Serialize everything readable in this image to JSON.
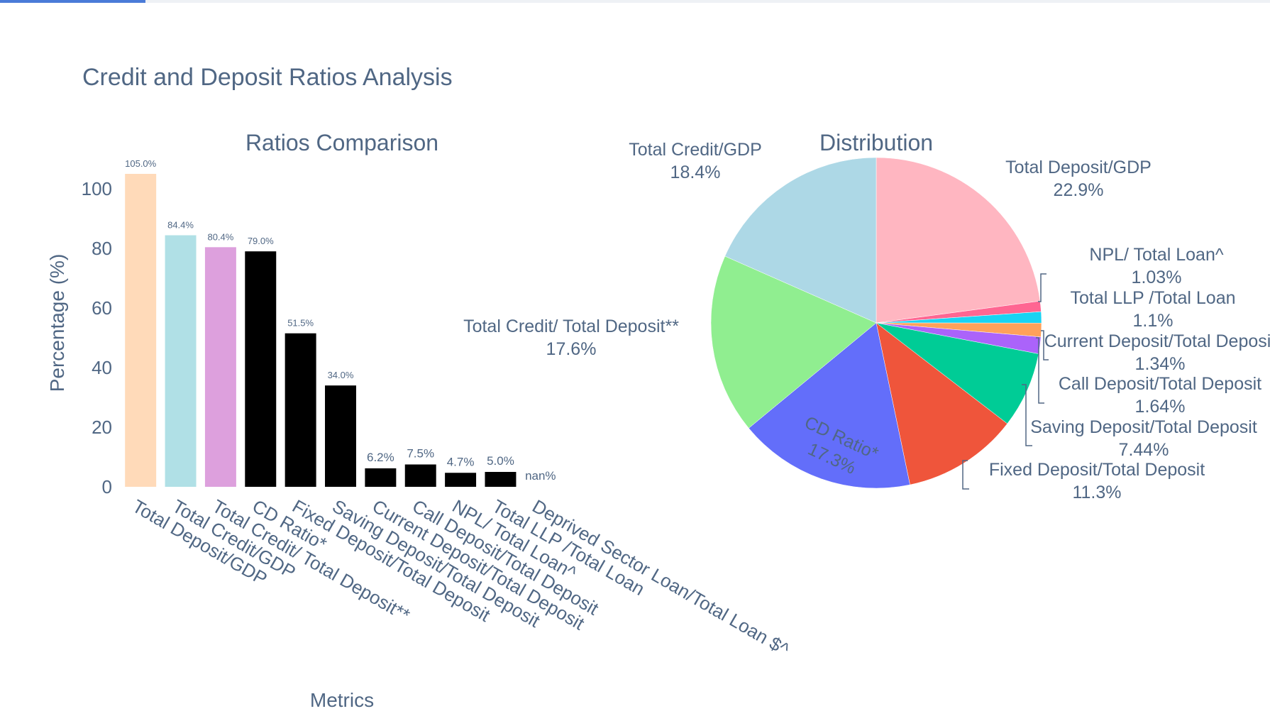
{
  "figure_title": "Credit and Deposit Ratios Analysis",
  "chart_data": [
    {
      "type": "bar",
      "title": "Ratios Comparison",
      "xlabel": "Metrics",
      "ylabel": "Percentage (%)",
      "ylim": [
        0,
        105
      ],
      "yticks": [
        0,
        20,
        40,
        60,
        80,
        100
      ],
      "grid": false,
      "categories": [
        "Total Deposit/GDP",
        "Total Credit/GDP",
        "Total Credit/ Total Deposit**",
        "CD Ratio*",
        "Fixed Deposit/Total Deposit",
        "Saving Deposit/Total Deposit",
        "Current Deposit/Total Deposit",
        "Call Deposit/Total Deposit",
        "NPL/ Total Loan^",
        "Total LLP  /Total Loan",
        "Deprived Sector Loan/Total Loan $^"
      ],
      "values": [
        105.0,
        84.4,
        80.4,
        79.0,
        51.5,
        34.0,
        6.2,
        7.5,
        4.7,
        5.0,
        null
      ],
      "labels": [
        "105.0%",
        "84.4%",
        "80.4%",
        "79.0%",
        "51.5%",
        "34.0%",
        "6.2%",
        "7.5%",
        "4.7%",
        "5.0%",
        "nan%"
      ],
      "colors": [
        "#FFDAB9",
        "#B0E0E6",
        "#DDA0DD",
        "#000000",
        "#000000",
        "#000000",
        "#000000",
        "#000000",
        "#000000",
        "#000000",
        "#000000"
      ]
    },
    {
      "type": "pie",
      "title": "Distribution",
      "slices": [
        {
          "label": "Total Deposit/GDP",
          "value": 22.9,
          "text": "22.9%",
          "color": "#FFB6C1"
        },
        {
          "label": "NPL/ Total Loan^",
          "value": 1.03,
          "text": "1.03%",
          "color": "#FF6692"
        },
        {
          "label": "Total LLP  /Total Loan",
          "value": 1.1,
          "text": "1.1%",
          "color": "#19D3F3"
        },
        {
          "label": "Current Deposit/Total Deposit",
          "value": 1.34,
          "text": "1.34%",
          "color": "#FFA15A"
        },
        {
          "label": "Call Deposit/Total Deposit",
          "value": 1.64,
          "text": "1.64%",
          "color": "#AB63FA"
        },
        {
          "label": "Saving Deposit/Total Deposit",
          "value": 7.44,
          "text": "7.44%",
          "color": "#00CC96"
        },
        {
          "label": "Fixed Deposit/Total Deposit",
          "value": 11.3,
          "text": "11.3%",
          "color": "#EF553B"
        },
        {
          "label": "CD Ratio*",
          "value": 17.3,
          "text": "17.3%",
          "color": "#636EFA"
        },
        {
          "label": "Total Credit/ Total Deposit**",
          "value": 17.6,
          "text": "17.6%",
          "color": "#90EE90"
        },
        {
          "label": "Total Credit/GDP",
          "value": 18.4,
          "text": "18.4%",
          "color": "#ADD8E6"
        }
      ]
    }
  ]
}
